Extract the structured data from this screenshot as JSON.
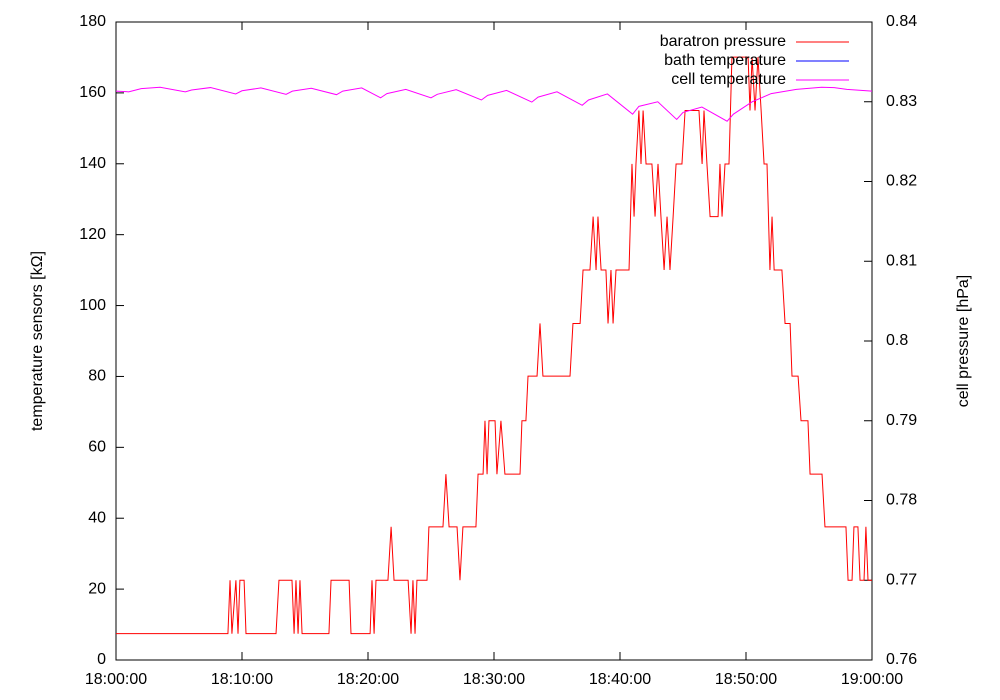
{
  "chart_data": {
    "type": "line",
    "ylabel": "temperature sensors [kΩ]",
    "y2label": "cell pressure [hPa]",
    "xlim": [
      "18:00:00",
      "19:00:00"
    ],
    "xticks": [
      "18:00:00",
      "18:10:00",
      "18:20:00",
      "18:30:00",
      "18:40:00",
      "18:50:00",
      "19:00:00"
    ],
    "ylim": [
      0,
      180
    ],
    "yticks": [
      0,
      20,
      40,
      60,
      80,
      100,
      120,
      140,
      160,
      180
    ],
    "y2lim": [
      0.76,
      0.84
    ],
    "y2ticks": [
      0.76,
      0.77,
      0.78,
      0.79,
      0.8,
      0.81,
      0.82,
      0.83,
      0.84
    ],
    "legend": "upper right",
    "series": [
      {
        "name": "baratron pressure",
        "color": "#ff0000",
        "axis": "y2",
        "x": [
          "18:00:00",
          "18:08:53",
          "18:09:03",
          "18:09:12",
          "18:09:31",
          "18:09:41",
          "18:09:50",
          "18:10:10",
          "18:10:19",
          "18:12:42",
          "18:12:56",
          "18:13:58",
          "18:14:08",
          "18:14:17",
          "18:14:27",
          "18:14:36",
          "18:14:46",
          "18:16:54",
          "18:17:04",
          "18:18:30",
          "18:18:39",
          "18:20:10",
          "18:20:19",
          "18:20:29",
          "18:20:38",
          "18:21:35",
          "18:21:50",
          "18:22:04",
          "18:23:11",
          "18:23:25",
          "18:23:34",
          "18:23:44",
          "18:23:53",
          "18:24:41",
          "18:24:50",
          "18:25:57",
          "18:26:11",
          "18:26:26",
          "18:27:04",
          "18:27:18",
          "18:27:32",
          "18:28:34",
          "18:28:44",
          "18:29:08",
          "18:29:17",
          "18:29:27",
          "18:29:36",
          "18:30:05",
          "18:30:14",
          "18:30:33",
          "18:30:52",
          "18:32:04",
          "18:32:13",
          "18:32:32",
          "18:32:42",
          "18:33:25",
          "18:33:39",
          "18:33:53",
          "18:36:02",
          "18:36:16",
          "18:36:50",
          "18:37:04",
          "18:37:37",
          "18:37:52",
          "18:38:06",
          "18:38:15",
          "18:38:30",
          "18:38:53",
          "18:39:03",
          "18:39:17",
          "18:39:27",
          "18:39:41",
          "18:40:43",
          "18:40:57",
          "18:41:07",
          "18:41:16",
          "18:41:30",
          "18:41:40",
          "18:41:50",
          "18:42:04",
          "18:42:32",
          "18:42:47",
          "18:43:01",
          "18:43:15",
          "18:43:30",
          "18:43:44",
          "18:43:58",
          "18:44:13",
          "18:44:27",
          "18:44:55",
          "18:45:10",
          "18:46:16",
          "18:46:31",
          "18:46:40",
          "18:46:54",
          "18:47:09",
          "18:47:47",
          "18:47:56",
          "18:48:06",
          "18:48:20",
          "18:48:39",
          "18:48:53",
          "18:50:10",
          "18:50:19",
          "18:50:29",
          "18:50:43",
          "18:50:57",
          "18:51:12",
          "18:51:26",
          "18:51:40",
          "18:51:54",
          "18:52:04",
          "18:52:14",
          "18:52:51",
          "18:53:06",
          "18:53:30",
          "18:53:39",
          "18:54:08",
          "18:54:22",
          "18:54:55",
          "18:55:05",
          "18:56:02",
          "18:56:16",
          "18:57:56",
          "18:58:06",
          "18:58:25",
          "18:58:34",
          "18:58:53",
          "18:59:03",
          "18:59:22",
          "18:59:31",
          "18:59:41",
          "19:00:00"
        ],
        "values": [
          0.7633,
          0.7633,
          0.77,
          0.7633,
          0.77,
          0.7633,
          0.77,
          0.77,
          0.7633,
          0.7633,
          0.77,
          0.77,
          0.7633,
          0.77,
          0.7633,
          0.77,
          0.7633,
          0.7633,
          0.77,
          0.77,
          0.7633,
          0.7633,
          0.77,
          0.7633,
          0.77,
          0.77,
          0.7767,
          0.77,
          0.77,
          0.7633,
          0.77,
          0.7633,
          0.77,
          0.77,
          0.7767,
          0.7767,
          0.7833,
          0.7767,
          0.7767,
          0.77,
          0.7767,
          0.7767,
          0.7833,
          0.7833,
          0.79,
          0.7833,
          0.79,
          0.79,
          0.7833,
          0.79,
          0.7833,
          0.7833,
          0.79,
          0.79,
          0.7956,
          0.7956,
          0.8022,
          0.7956,
          0.7956,
          0.8022,
          0.8022,
          0.8089,
          0.8089,
          0.8156,
          0.8089,
          0.8156,
          0.8089,
          0.8089,
          0.8022,
          0.8089,
          0.8022,
          0.8089,
          0.8089,
          0.8222,
          0.8156,
          0.8222,
          0.8289,
          0.8222,
          0.8289,
          0.8222,
          0.8222,
          0.8156,
          0.8222,
          0.8156,
          0.8089,
          0.8156,
          0.8089,
          0.8156,
          0.8222,
          0.8222,
          0.8289,
          0.8289,
          0.8222,
          0.8289,
          0.8222,
          0.8156,
          0.8156,
          0.8222,
          0.8156,
          0.8222,
          0.8222,
          0.8356,
          0.8356,
          0.8289,
          0.8356,
          0.8289,
          0.8356,
          0.8289,
          0.8222,
          0.8222,
          0.8089,
          0.8156,
          0.8089,
          0.8089,
          0.8022,
          0.8022,
          0.7956,
          0.7956,
          0.79,
          0.79,
          0.7833,
          0.7833,
          0.7767,
          0.7767,
          0.77,
          0.77,
          0.7767,
          0.7767,
          0.77,
          0.77,
          0.7767,
          0.77,
          0.77
        ]
      },
      {
        "name": "bath temperature",
        "color": "#0000ff",
        "x": [],
        "values": []
      },
      {
        "name": "cell temperature",
        "color": "#ff00ff",
        "x": [
          "18:00:00",
          "18:01:00",
          "18:02:00",
          "18:03:30",
          "18:05:30",
          "18:06:00",
          "18:07:30",
          "18:09:30",
          "18:10:00",
          "18:11:30",
          "18:13:30",
          "18:14:00",
          "18:15:30",
          "18:17:30",
          "18:18:00",
          "18:19:30",
          "18:21:00",
          "18:21:30",
          "18:23:00",
          "18:25:00",
          "18:25:30",
          "18:27:00",
          "18:29:00",
          "18:29:30",
          "18:31:00",
          "18:33:00",
          "18:33:30",
          "18:35:00",
          "18:37:00",
          "18:37:30",
          "18:39:00",
          "18:41:00",
          "18:41:30",
          "18:43:00",
          "18:44:30",
          "18:45:00",
          "18:46:30",
          "18:48:30",
          "18:49:00",
          "18:50:30",
          "18:52:00",
          "18:54:00",
          "18:56:00",
          "18:57:00",
          "18:58:00",
          "19:00:00"
        ],
        "values": [
          160.5,
          160.3,
          161.2,
          161.6,
          160.3,
          160.8,
          161.5,
          159.7,
          160.6,
          161.4,
          159.6,
          160.5,
          161.3,
          159.5,
          160.5,
          161.4,
          158.6,
          159.8,
          161.0,
          158.6,
          159.6,
          160.9,
          158.0,
          159.3,
          160.7,
          157.4,
          158.8,
          160.3,
          156.5,
          158.0,
          159.7,
          154.0,
          156.2,
          157.5,
          152.5,
          154.5,
          156.0,
          152.0,
          154.0,
          157.5,
          159.8,
          161.0,
          161.6,
          161.5,
          161.0,
          160.5
        ]
      }
    ]
  }
}
